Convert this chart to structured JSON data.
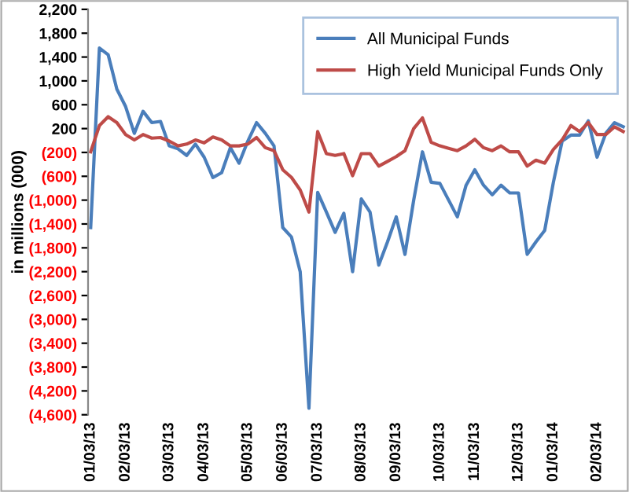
{
  "chart_data": {
    "type": "line",
    "ylabel": "in millions (000)",
    "categories": [
      "01/03/13",
      null,
      null,
      null,
      "02/03/13",
      null,
      null,
      null,
      null,
      "03/03/13",
      null,
      null,
      null,
      "04/03/13",
      null,
      null,
      null,
      null,
      "05/03/13",
      null,
      null,
      null,
      "06/03/13",
      null,
      null,
      null,
      "07/03/13",
      null,
      null,
      null,
      null,
      "08/03/13",
      null,
      null,
      null,
      "09/03/13",
      null,
      null,
      null,
      null,
      "10/03/13",
      null,
      null,
      null,
      "11/03/13",
      null,
      null,
      null,
      null,
      "12/03/13",
      null,
      null,
      null,
      "01/03/14",
      null,
      null,
      null,
      null,
      "02/03/14",
      null,
      null,
      null
    ],
    "series": [
      {
        "name": "All Municipal Funds",
        "color": "#4a7ebb",
        "values": [
          -1460,
          1550,
          1440,
          860,
          570,
          120,
          490,
          300,
          320,
          -90,
          -140,
          -250,
          -60,
          -280,
          -620,
          -540,
          -120,
          -380,
          -10,
          300,
          120,
          -90,
          -1460,
          -1620,
          -2200,
          -4490,
          -870,
          -1200,
          -1540,
          -1220,
          -2200,
          -980,
          -1200,
          -2090,
          -1700,
          -1280,
          -1910,
          -1000,
          -190,
          -700,
          -720,
          -1000,
          -1280,
          -750,
          -490,
          -750,
          -910,
          -750,
          -880,
          -880,
          -1910,
          -1700,
          -1510,
          -700,
          -10,
          90,
          90,
          330,
          -280,
          120,
          300,
          230
        ]
      },
      {
        "name": "High Yield Municipal Funds Only",
        "color": "#be4b48",
        "values": [
          -190,
          250,
          400,
          300,
          100,
          10,
          100,
          40,
          50,
          -10,
          -90,
          -60,
          10,
          -40,
          60,
          10,
          -90,
          -90,
          -60,
          50,
          -120,
          -170,
          -490,
          -620,
          -830,
          -1200,
          150,
          -220,
          -250,
          -220,
          -590,
          -220,
          -220,
          -430,
          -350,
          -270,
          -170,
          200,
          380,
          -30,
          -90,
          -130,
          -170,
          -90,
          20,
          -120,
          -170,
          -90,
          -190,
          -190,
          -430,
          -330,
          -380,
          -150,
          10,
          250,
          150,
          300,
          100,
          100,
          230,
          150
        ]
      }
    ],
    "ylim": [
      -4600,
      2200
    ],
    "yticks": [
      {
        "value": 2200,
        "label": "2,200"
      },
      {
        "value": 1800,
        "label": "1,800"
      },
      {
        "value": 1400,
        "label": "1,400"
      },
      {
        "value": 1000,
        "label": "1,000"
      },
      600,
      200,
      {
        "value": -200,
        "label": "(200)"
      },
      {
        "value": -600,
        "label": "(600)"
      },
      {
        "value": -1000,
        "label": "(1,000)"
      },
      {
        "value": -1400,
        "label": "(1,400)"
      },
      {
        "value": -1800,
        "label": "(1,800)"
      },
      {
        "value": -2200,
        "label": "(2,200)"
      },
      {
        "value": -2600,
        "label": "(2,600)"
      },
      {
        "value": -3000,
        "label": "(3,000)"
      },
      {
        "value": -3400,
        "label": "(3,400)"
      },
      {
        "value": -3800,
        "label": "(3,800)"
      },
      {
        "value": -4200,
        "label": "(4,200)"
      },
      {
        "value": -4600,
        "label": "(4,600)"
      }
    ],
    "grid": false,
    "legend": "top right",
    "marker": "none",
    "line_style": "solid"
  }
}
